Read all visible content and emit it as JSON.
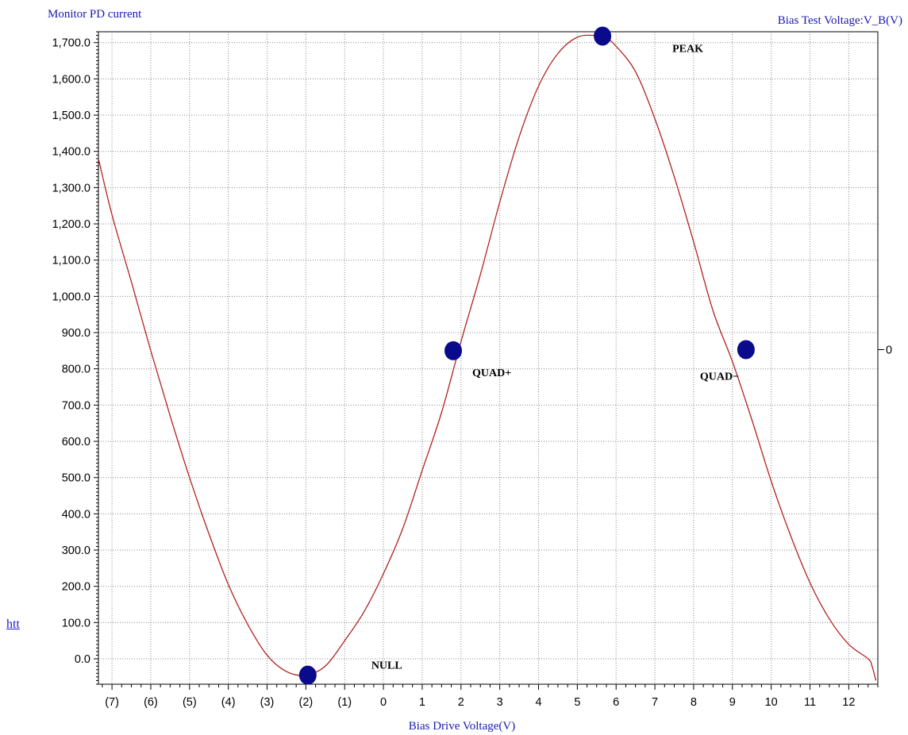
{
  "page": {
    "side_link": "htt"
  },
  "chart_data": {
    "type": "line",
    "title_left": "Monitor PD current",
    "title_right": "Bias Test Voltage:V_B(V)",
    "xlabel": "Bias Drive Voltage(V)",
    "ylabel": "",
    "xlim": [
      -7.35,
      12.75
    ],
    "ylim": [
      -70,
      1730
    ],
    "x_ticks": [
      -7,
      -6,
      -5,
      -4,
      -3,
      -2,
      -1,
      0,
      1,
      2,
      3,
      4,
      5,
      6,
      7,
      8,
      9,
      10,
      11,
      12
    ],
    "x_tick_labels": [
      "(7)",
      "(6)",
      "(5)",
      "(4)",
      "(3)",
      "(2)",
      "(1)",
      "0",
      "1",
      "2",
      "3",
      "4",
      "5",
      "6",
      "7",
      "8",
      "9",
      "10",
      "11",
      "12"
    ],
    "y_ticks": [
      0,
      100,
      200,
      300,
      400,
      500,
      600,
      700,
      800,
      900,
      1000,
      1100,
      1200,
      1300,
      1400,
      1500,
      1600,
      1700
    ],
    "y_tick_labels": [
      "0.0",
      "100.0",
      "200.0",
      "300.0",
      "400.0",
      "500.0",
      "600.0",
      "700.0",
      "800.0",
      "900.0",
      "1,000.0",
      "1,100.0",
      "1,200.0",
      "1,300.0",
      "1,400.0",
      "1,500.0",
      "1,600.0",
      "1,700.0"
    ],
    "right_axis_label": "0",
    "grid": true,
    "colors": {
      "curve": "#b22222",
      "markers": "#0a0a8c",
      "title": "#1a1ab0",
      "grid": "#888888"
    },
    "series": [
      {
        "x": [
          -7.35,
          -7.0,
          -6.5,
          -6.0,
          -5.5,
          -5.0,
          -4.5,
          -4.0,
          -3.5,
          -3.0,
          -2.5,
          -2.0,
          -1.5,
          -1.0,
          -0.5,
          0.0,
          0.5,
          1.0,
          1.5,
          2.0,
          2.5,
          3.0,
          3.5,
          4.0,
          4.5,
          5.0,
          5.5,
          5.7,
          6.0,
          6.5,
          7.0,
          7.5,
          8.0,
          8.5,
          9.0,
          9.5,
          10.0,
          10.5,
          11.0,
          11.5,
          12.0,
          12.5,
          12.6,
          12.7
        ],
        "y": [
          1380,
          1225,
          1040,
          850,
          670,
          500,
          345,
          205,
          95,
          10,
          -35,
          -45,
          -20,
          50,
          130,
          235,
          360,
          520,
          680,
          875,
          1060,
          1260,
          1440,
          1580,
          1670,
          1715,
          1720,
          1718,
          1690,
          1620,
          1490,
          1330,
          1150,
          960,
          820,
          660,
          490,
          340,
          210,
          110,
          40,
          0,
          -20,
          -60
        ]
      }
    ],
    "markers": [
      {
        "label": "NULL",
        "x": -1.95,
        "y": -45
      },
      {
        "label": "QUAD+",
        "x": 1.8,
        "y": 850
      },
      {
        "label": "PEAK",
        "x": 5.65,
        "y": 1718
      },
      {
        "label": "QUAD−",
        "x": 9.35,
        "y": 853
      }
    ]
  }
}
